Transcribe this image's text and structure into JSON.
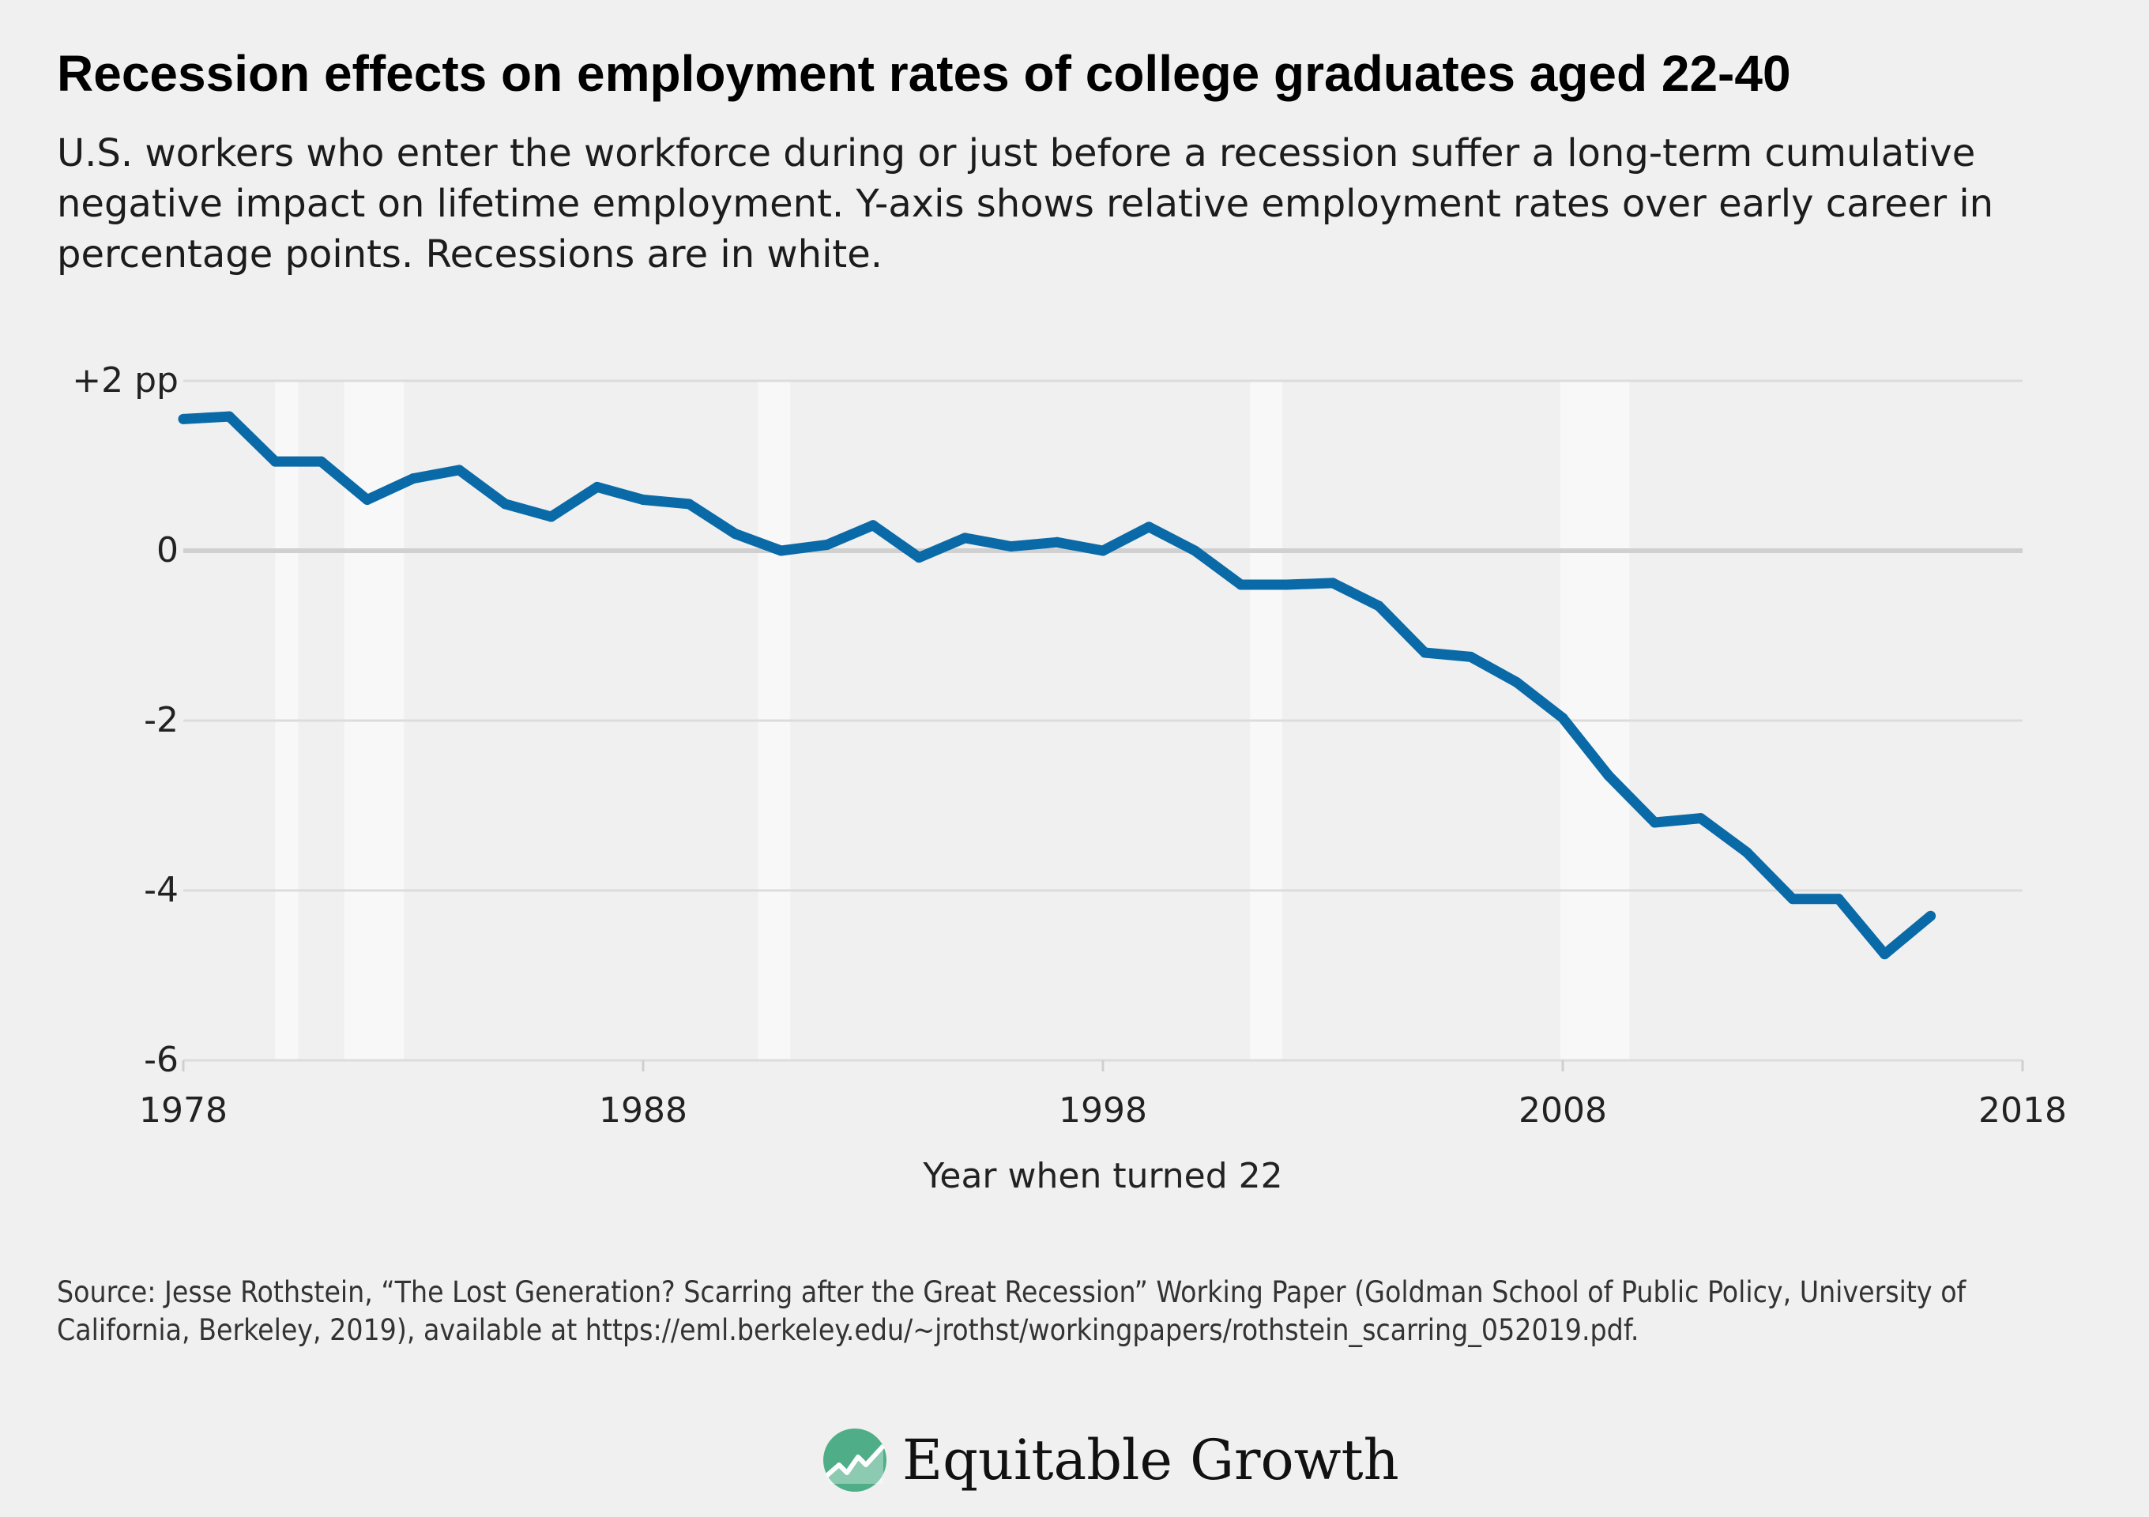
{
  "title": "Recession effects on employment rates of college graduates aged 22-40",
  "subtitle": "U.S. workers who enter the workforce during or just before a recession suffer a long-term cumulative negative impact on lifetime employment. Y-axis shows relative employment rates over early career in percentage points. Recessions are in white.",
  "source": "Source: Jesse Rothstein, “The Lost Generation? Scarring after the Great Recession” Working Paper (Goldman School of Public Policy, University of California, Berkeley, 2019), available at https://eml.berkeley.edu/~jrothst/workingpapers/rothstein_scarring_052019.pdf.",
  "logo": {
    "text": "Equitable Growth",
    "icon": "equitable-growth-logo-icon"
  },
  "colors": {
    "background": "#f0f0f0",
    "line": "#0a6aa8",
    "recession_band": "#f8f8f8",
    "grid": "#dcdcdc",
    "zero_line": "#d0d0d0",
    "logo_green": "#4fae88"
  },
  "chart_data": {
    "type": "line",
    "title": "Recession effects on employment rates of college graduates aged 22-40",
    "xlabel": "Year when turned 22",
    "ylabel": "",
    "xlim": [
      1978,
      2018
    ],
    "ylim": [
      -6,
      2
    ],
    "x_ticks": [
      {
        "value": 1978,
        "label": "1978"
      },
      {
        "value": 1988,
        "label": "1988"
      },
      {
        "value": 1998,
        "label": "1998"
      },
      {
        "value": 2008,
        "label": "2008"
      },
      {
        "value": 2018,
        "label": "2018"
      }
    ],
    "y_ticks": [
      {
        "value": 2,
        "label": "+2 pp"
      },
      {
        "value": 0,
        "label": "0"
      },
      {
        "value": -2,
        "label": "-2"
      },
      {
        "value": -4,
        "label": "-4"
      },
      {
        "value": -6,
        "label": "-6"
      }
    ],
    "recessions": [
      {
        "start": 1980.0,
        "end": 1980.5
      },
      {
        "start": 1981.5,
        "end": 1982.8
      },
      {
        "start": 1990.5,
        "end": 1991.2
      },
      {
        "start": 2001.2,
        "end": 2001.9
      },
      {
        "start": 2007.95,
        "end": 2009.45
      }
    ],
    "series": [
      {
        "name": "Relative employment rate (pp)",
        "x": [
          1978,
          1979,
          1980,
          1981,
          1982,
          1983,
          1984,
          1985,
          1986,
          1987,
          1988,
          1989,
          1990,
          1991,
          1992,
          1993,
          1994,
          1995,
          1996,
          1997,
          1998,
          1999,
          2000,
          2001,
          2002,
          2003,
          2004,
          2005,
          2006,
          2007,
          2008,
          2009,
          2010,
          2011,
          2012,
          2013,
          2014,
          2015,
          2016
        ],
        "values": [
          1.55,
          1.58,
          1.05,
          1.05,
          0.6,
          0.85,
          0.95,
          0.55,
          0.4,
          0.75,
          0.6,
          0.55,
          0.2,
          0.0,
          0.07,
          0.3,
          -0.08,
          0.15,
          0.05,
          0.1,
          0.0,
          0.28,
          0.0,
          -0.4,
          -0.4,
          -0.38,
          -0.65,
          -1.2,
          -1.25,
          -1.55,
          -1.97,
          -2.65,
          -3.2,
          -3.15,
          -3.55,
          -4.1,
          -4.1,
          -4.75,
          -4.3
        ]
      }
    ]
  }
}
